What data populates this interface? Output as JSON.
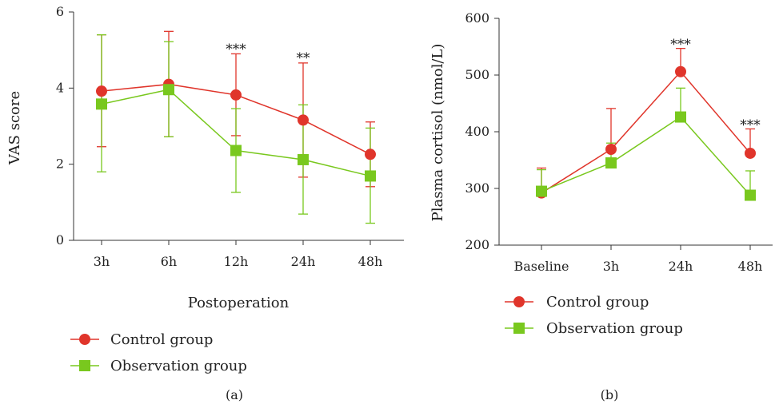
{
  "colors": {
    "control": "#e0352b",
    "observation": "#79c81e",
    "axis": "#333333"
  },
  "legend": {
    "control": "Control group",
    "observation": "Observation group"
  },
  "chart_data": [
    {
      "type": "line",
      "panel_label": "(a)",
      "xlabel": "Postoperation",
      "ylabel": "VAS score",
      "categories": [
        "3h",
        "6h",
        "12h",
        "24h",
        "48h"
      ],
      "ylim": [
        0,
        6
      ],
      "yticks": [
        0,
        2,
        4,
        6
      ],
      "series": [
        {
          "name": "Control group",
          "marker": "circle",
          "color": "#e0352b",
          "values": [
            3.92,
            4.1,
            3.82,
            3.16,
            2.26
          ],
          "err_upper": [
            5.4,
            5.49,
            4.9,
            4.66,
            3.11
          ],
          "err_lower": [
            2.46,
            2.72,
            2.75,
            1.66,
            1.41
          ]
        },
        {
          "name": "Observation group",
          "marker": "square",
          "color": "#79c81e",
          "values": [
            3.58,
            3.96,
            2.36,
            2.12,
            1.69
          ],
          "err_upper": [
            5.4,
            5.22,
            3.46,
            3.56,
            2.95
          ],
          "err_lower": [
            1.8,
            2.72,
            1.26,
            0.69,
            0.45
          ]
        }
      ],
      "annotations": [
        {
          "category": "12h",
          "text": "***",
          "y": 5.03
        },
        {
          "category": "24h",
          "text": "**",
          "y": 4.8
        }
      ],
      "legend_placement": "bottom-left"
    },
    {
      "type": "line",
      "panel_label": "(b)",
      "xlabel": "",
      "ylabel": "Plasma cortisol (nmol/L)",
      "categories": [
        "Baseline",
        "3h",
        "24h",
        "48h"
      ],
      "ylim": [
        200,
        600
      ],
      "yticks": [
        200,
        300,
        400,
        500,
        600
      ],
      "series": [
        {
          "name": "Control group",
          "marker": "circle",
          "color": "#e0352b",
          "values": [
            292,
            369,
            506,
            362
          ],
          "err_upper": [
            336,
            441,
            547,
            405
          ],
          "err_lower": [
            292,
            369,
            506,
            362
          ]
        },
        {
          "name": "Observation group",
          "marker": "square",
          "color": "#79c81e",
          "values": [
            295,
            345,
            426,
            288
          ],
          "err_upper": [
            333,
            380,
            477,
            331
          ],
          "err_lower": [
            295,
            345,
            426,
            288
          ]
        }
      ],
      "annotations": [
        {
          "category": "24h",
          "text": "***",
          "y": 555
        },
        {
          "category": "48h",
          "text": "***",
          "y": 413
        }
      ],
      "legend_placement": "bottom-left"
    }
  ]
}
